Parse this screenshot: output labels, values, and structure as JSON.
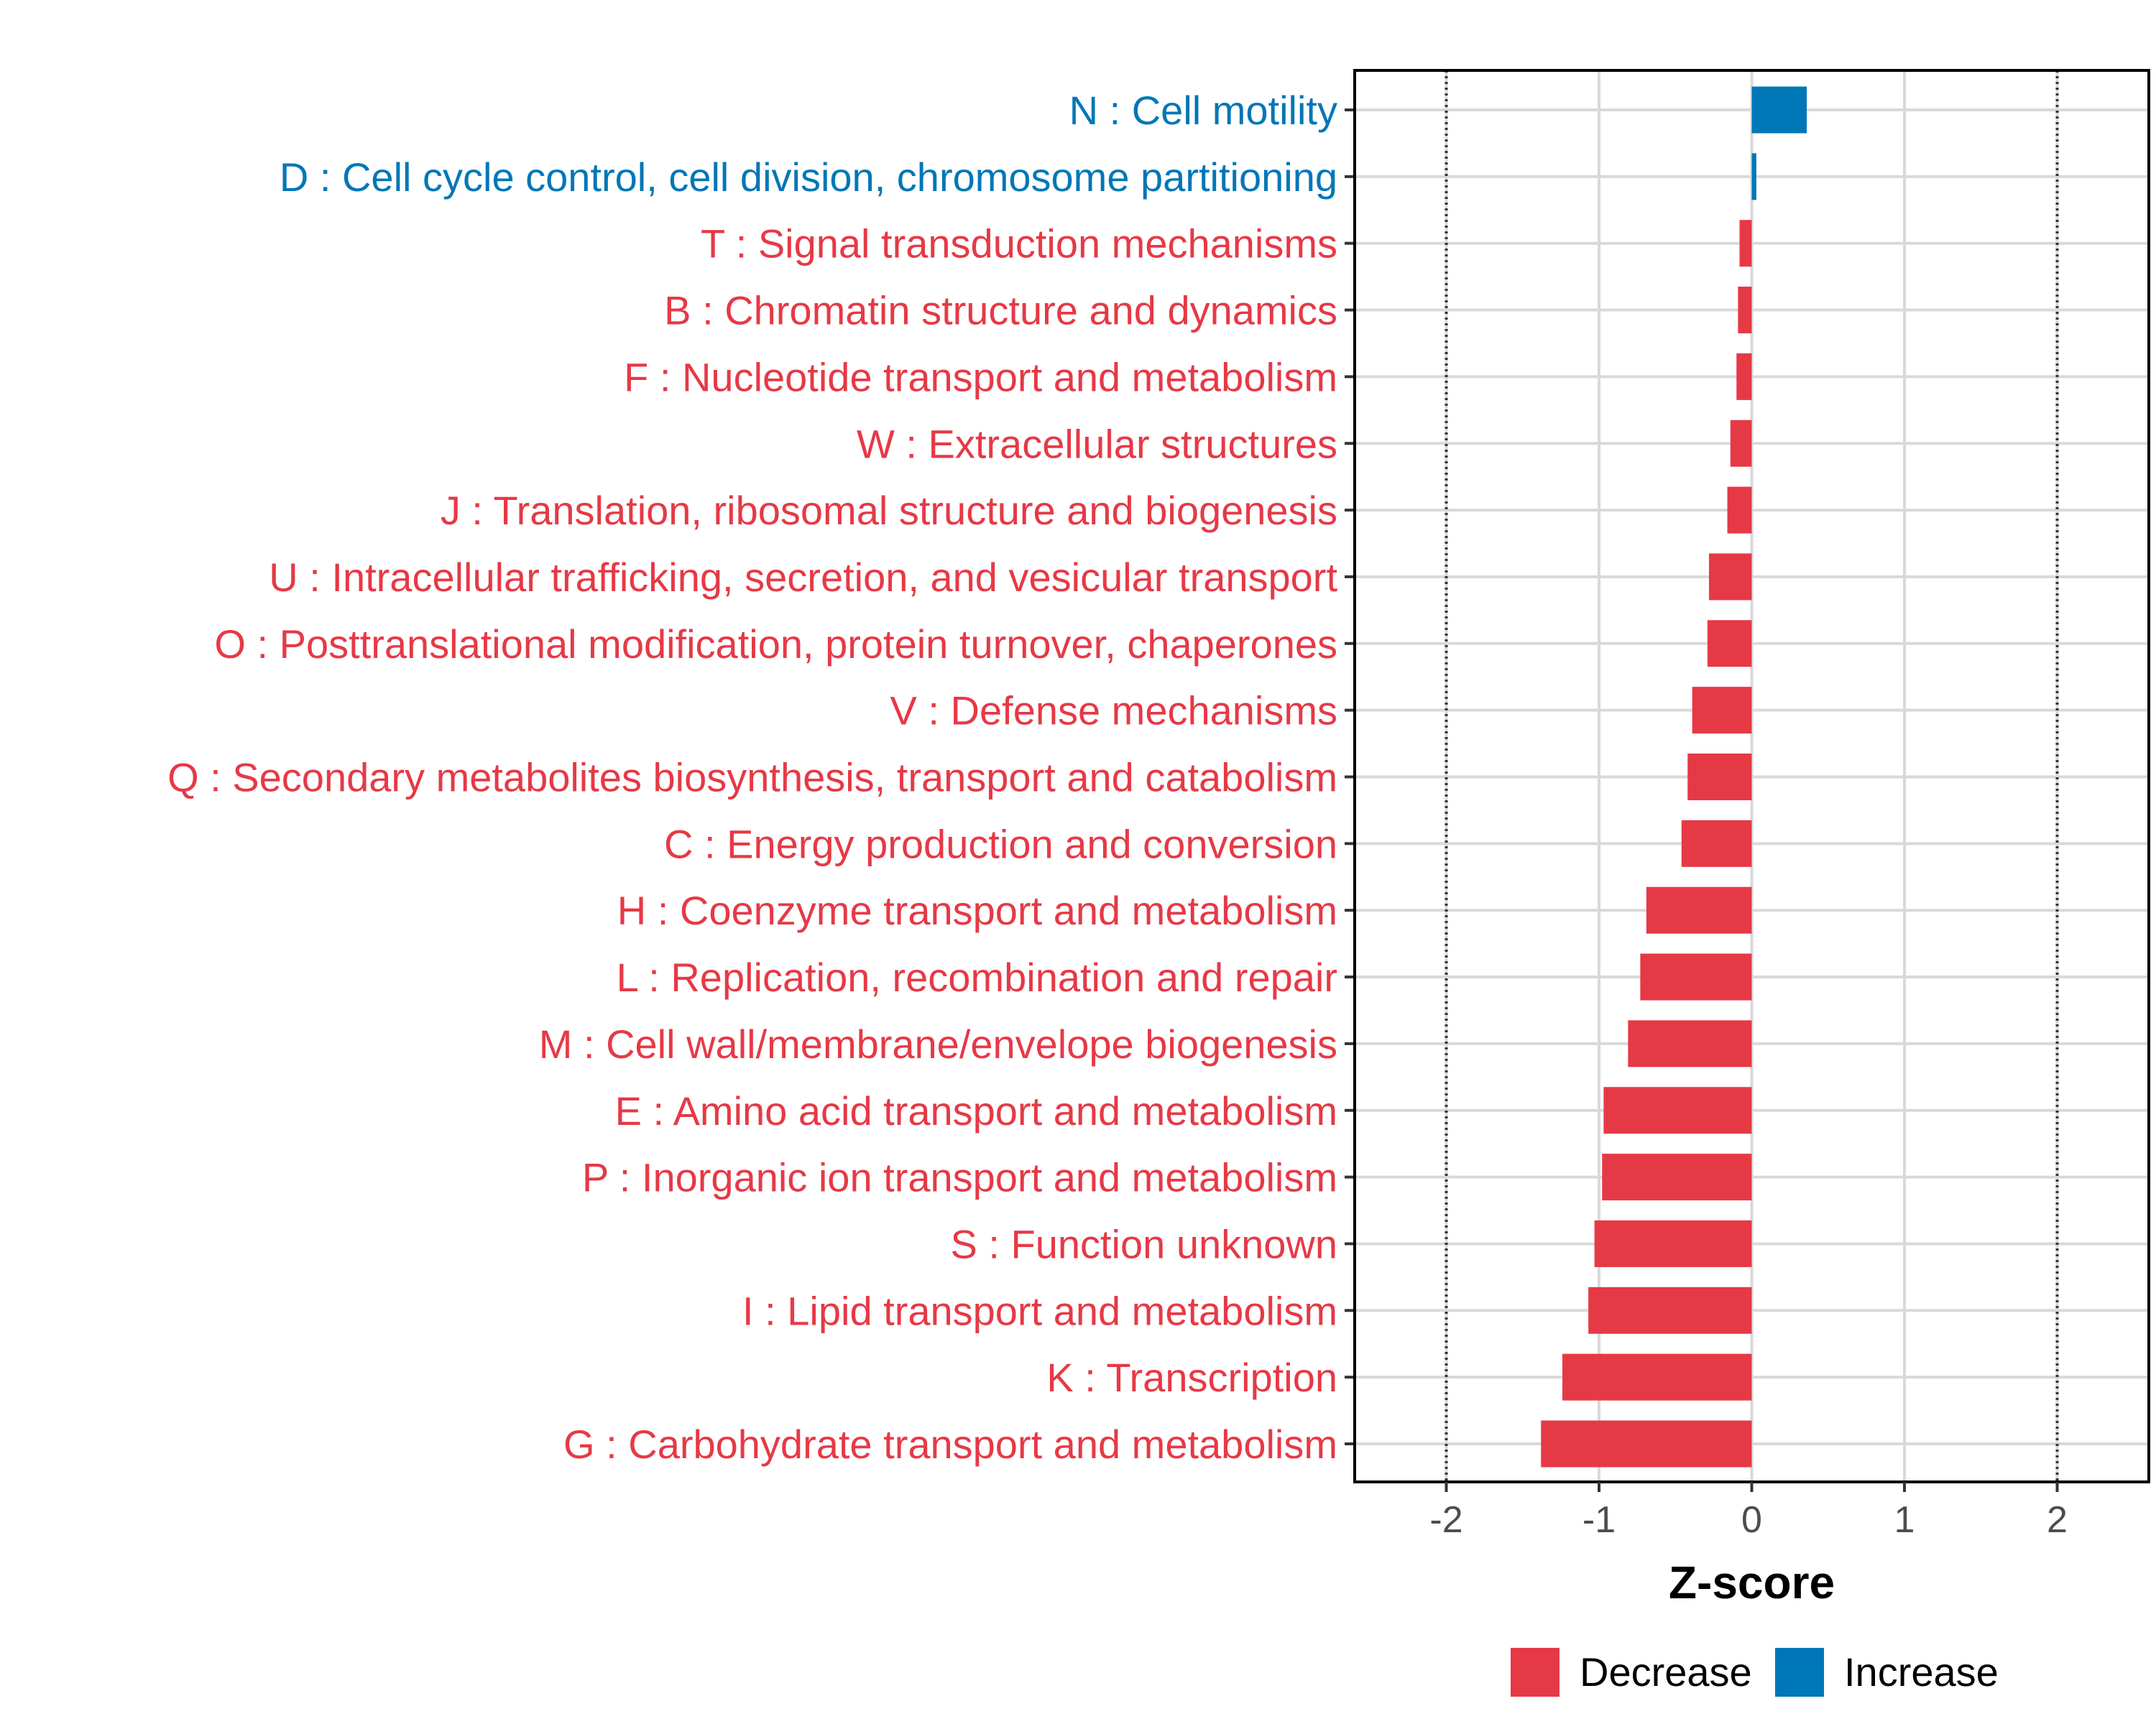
{
  "chart_data": {
    "type": "bar",
    "orientation": "horizontal",
    "xlabel": "Z-score",
    "ylabel": "",
    "xlim": [
      -2.6,
      2.6
    ],
    "xticks": [
      -2,
      -1,
      0,
      1,
      2
    ],
    "tick_labels": [
      "-2",
      "-1",
      "0",
      "1",
      "2"
    ],
    "reference_lines": [
      -2,
      2
    ],
    "grid": true,
    "colors": {
      "Decrease": "#e63946",
      "Increase": "#0077b6"
    },
    "legend": {
      "position": "bottom",
      "entries": [
        {
          "label": "Decrease",
          "color": "#e63946"
        },
        {
          "label": "Increase",
          "color": "#0077b6"
        }
      ]
    },
    "bars": [
      {
        "label": "N : Cell motility",
        "value": 0.36,
        "direction": "Increase"
      },
      {
        "label": "D : Cell cycle control, cell division, chromosome partitioning",
        "value": 0.03,
        "direction": "Increase"
      },
      {
        "label": "T : Signal transduction mechanisms",
        "value": -0.08,
        "direction": "Decrease"
      },
      {
        "label": "B : Chromatin structure and dynamics",
        "value": -0.09,
        "direction": "Decrease"
      },
      {
        "label": "F : Nucleotide transport and metabolism",
        "value": -0.1,
        "direction": "Decrease"
      },
      {
        "label": "W : Extracellular structures",
        "value": -0.14,
        "direction": "Decrease"
      },
      {
        "label": "J : Translation, ribosomal structure and biogenesis",
        "value": -0.16,
        "direction": "Decrease"
      },
      {
        "label": "U : Intracellular trafficking, secretion, and vesicular transport",
        "value": -0.28,
        "direction": "Decrease"
      },
      {
        "label": "O : Posttranslational modification, protein turnover, chaperones",
        "value": -0.29,
        "direction": "Decrease"
      },
      {
        "label": "V : Defense mechanisms",
        "value": -0.39,
        "direction": "Decrease"
      },
      {
        "label": "Q : Secondary metabolites biosynthesis, transport and catabolism",
        "value": -0.42,
        "direction": "Decrease"
      },
      {
        "label": "C : Energy production and conversion",
        "value": -0.46,
        "direction": "Decrease"
      },
      {
        "label": "H : Coenzyme transport and metabolism",
        "value": -0.69,
        "direction": "Decrease"
      },
      {
        "label": "L : Replication, recombination and repair",
        "value": -0.73,
        "direction": "Decrease"
      },
      {
        "label": "M : Cell wall/membrane/envelope biogenesis",
        "value": -0.81,
        "direction": "Decrease"
      },
      {
        "label": "E : Amino acid transport and metabolism",
        "value": -0.97,
        "direction": "Decrease"
      },
      {
        "label": "P : Inorganic ion transport and metabolism",
        "value": -0.98,
        "direction": "Decrease"
      },
      {
        "label": "S : Function unknown",
        "value": -1.03,
        "direction": "Decrease"
      },
      {
        "label": "I : Lipid transport and metabolism",
        "value": -1.07,
        "direction": "Decrease"
      },
      {
        "label": "K : Transcription",
        "value": -1.24,
        "direction": "Decrease"
      },
      {
        "label": "G : Carbohydrate transport and metabolism",
        "value": -1.38,
        "direction": "Decrease"
      }
    ]
  }
}
